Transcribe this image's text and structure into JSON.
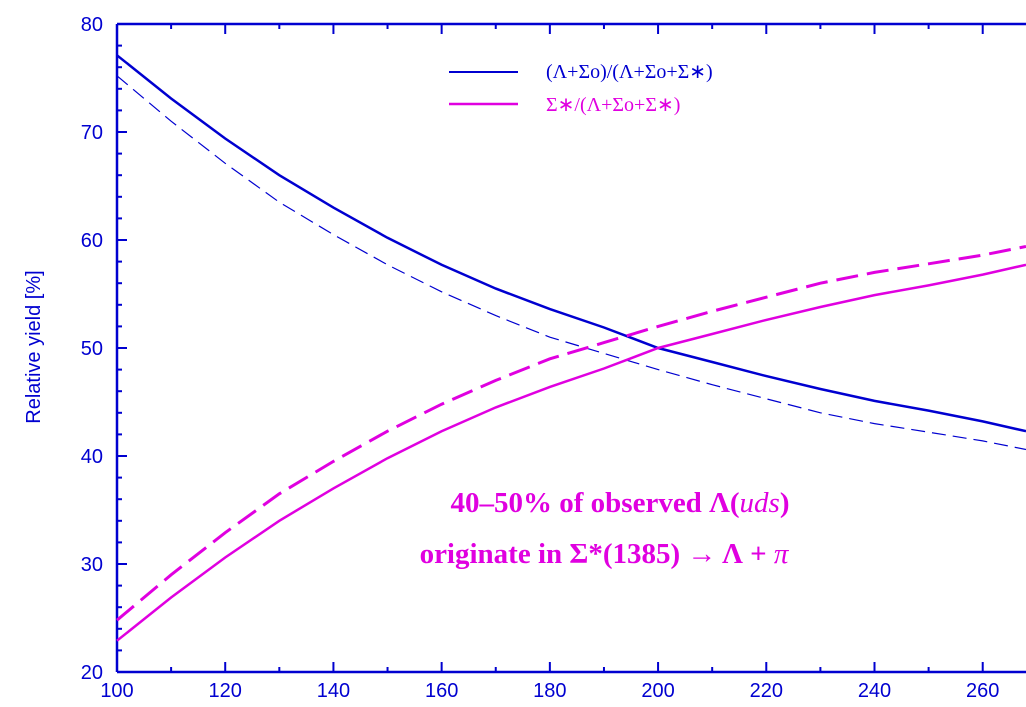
{
  "chart_data": {
    "type": "line",
    "title": "",
    "xlabel": "",
    "ylabel": "Relative yield [%]",
    "xlim": [
      100,
      268
    ],
    "ylim": [
      20,
      80
    ],
    "x_ticks": [
      100,
      120,
      140,
      160,
      180,
      200,
      220,
      240,
      260
    ],
    "y_ticks": [
      20,
      30,
      40,
      50,
      60,
      70,
      80
    ],
    "grid": false,
    "legend_position": "top-right",
    "legend": [
      {
        "label": "(Λ+Σo)/(Λ+Σo+Σ∗)",
        "color": "#0000d0"
      },
      {
        "label": "Σ∗/(Λ+Σo+Σ∗)",
        "color": "#e000e0"
      }
    ],
    "series": [
      {
        "color": "#0000d0",
        "style": "solid",
        "x": [
          100,
          110,
          120,
          130,
          140,
          150,
          160,
          170,
          180,
          190,
          200,
          210,
          220,
          230,
          240,
          250,
          260,
          268
        ],
        "y": [
          77.1,
          73.1,
          69.4,
          66.0,
          63.0,
          60.2,
          57.7,
          55.5,
          53.6,
          51.9,
          50.0,
          48.7,
          47.4,
          46.2,
          45.1,
          44.2,
          43.2,
          42.3
        ]
      },
      {
        "color": "#0000d0",
        "style": "thin-dashed",
        "x": [
          100,
          110,
          120,
          130,
          140,
          150,
          160,
          170,
          180,
          190,
          200,
          210,
          220,
          230,
          240,
          250,
          260,
          268
        ],
        "y": [
          75.2,
          71.0,
          67.1,
          63.5,
          60.5,
          57.7,
          55.2,
          53.0,
          51.0,
          49.5,
          48.0,
          46.6,
          45.3,
          44.0,
          43.0,
          42.2,
          41.4,
          40.6
        ]
      },
      {
        "color": "#e000e0",
        "style": "solid",
        "x": [
          100,
          110,
          120,
          130,
          140,
          150,
          160,
          170,
          180,
          190,
          200,
          210,
          220,
          230,
          240,
          250,
          260,
          268
        ],
        "y": [
          22.9,
          26.9,
          30.6,
          34.0,
          37.0,
          39.8,
          42.3,
          44.5,
          46.4,
          48.1,
          50.0,
          51.3,
          52.6,
          53.8,
          54.9,
          55.8,
          56.8,
          57.7
        ]
      },
      {
        "color": "#e000e0",
        "style": "dashed",
        "x": [
          100,
          110,
          120,
          130,
          140,
          150,
          160,
          170,
          180,
          190,
          200,
          210,
          220,
          230,
          240,
          250,
          260,
          268
        ],
        "y": [
          24.8,
          29.0,
          32.9,
          36.5,
          39.5,
          42.3,
          44.8,
          47.0,
          49.0,
          50.5,
          52.0,
          53.4,
          54.7,
          56.0,
          57.0,
          57.8,
          58.6,
          59.4
        ]
      }
    ],
    "annotation": {
      "line1": {
        "prefix": "40–50% of observed Λ(",
        "ital": "uds",
        "suffix": ")"
      },
      "line2": {
        "prefix": "originate in Σ*(1385) → Λ + ",
        "ital": "π"
      }
    }
  }
}
